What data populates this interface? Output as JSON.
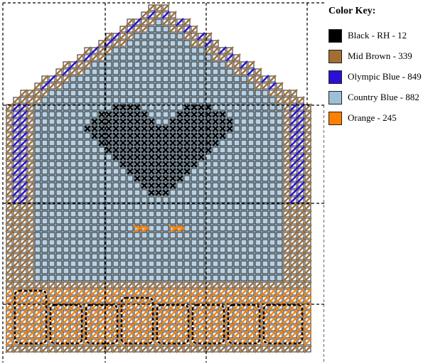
{
  "legend": {
    "title": "Color Key:",
    "items": [
      {
        "label": "Black - RH - 12",
        "color": "#000000"
      },
      {
        "label": "Mid Brown - 339",
        "color": "#a36e32"
      },
      {
        "label": "Olympic Blue - 849",
        "color": "#2a10d6"
      },
      {
        "label": "Country Blue - 882",
        "color": "#9cc0d8"
      },
      {
        "label": "Orange - 245",
        "color": "#ff8000"
      }
    ]
  },
  "colors": {
    "grid_line": "#202020",
    "background": "#ffffff",
    "fill_blue": "#b7d2e4",
    "guide": "#000000"
  }
}
